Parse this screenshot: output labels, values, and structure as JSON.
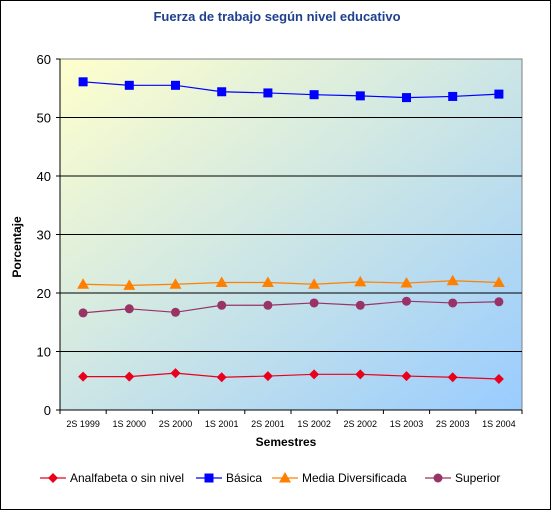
{
  "chart_data": {
    "type": "line",
    "title": "Fuerza de trabajo según nivel educativo",
    "xlabel": "Semestres",
    "ylabel": "Porcentaje",
    "ylim": [
      0,
      60
    ],
    "yticks": [
      0,
      10,
      20,
      30,
      40,
      50,
      60
    ],
    "grid": "horizontal",
    "legend": "bottom",
    "categories": [
      "2S 1999",
      "1S 2000",
      "2S 2000",
      "1S 2001",
      "2S 2001",
      "1S 2002",
      "2S 2002",
      "1S 2003",
      "2S 2003",
      "1S 2004"
    ],
    "series": [
      {
        "name": "Analfabeta o sin nivel",
        "color": "#e8001c",
        "marker": "diamond",
        "values": [
          5.7,
          5.7,
          6.3,
          5.6,
          5.8,
          6.1,
          6.1,
          5.8,
          5.6,
          5.3
        ]
      },
      {
        "name": "Básica",
        "color": "#0000ff",
        "marker": "square",
        "values": [
          56.1,
          55.5,
          55.5,
          54.4,
          54.2,
          53.9,
          53.7,
          53.4,
          53.6,
          54.0
        ]
      },
      {
        "name": "Media Diversificada",
        "color": "#ff8000",
        "marker": "triangle",
        "values": [
          21.5,
          21.3,
          21.5,
          21.8,
          21.8,
          21.5,
          21.9,
          21.7,
          22.1,
          21.8
        ]
      },
      {
        "name": "Superior",
        "color": "#993366",
        "marker": "circle",
        "values": [
          16.6,
          17.3,
          16.7,
          17.9,
          17.9,
          18.3,
          17.9,
          18.6,
          18.3,
          18.5
        ]
      }
    ],
    "background_gradient": [
      "#ffffcc",
      "#99ccff"
    ]
  }
}
